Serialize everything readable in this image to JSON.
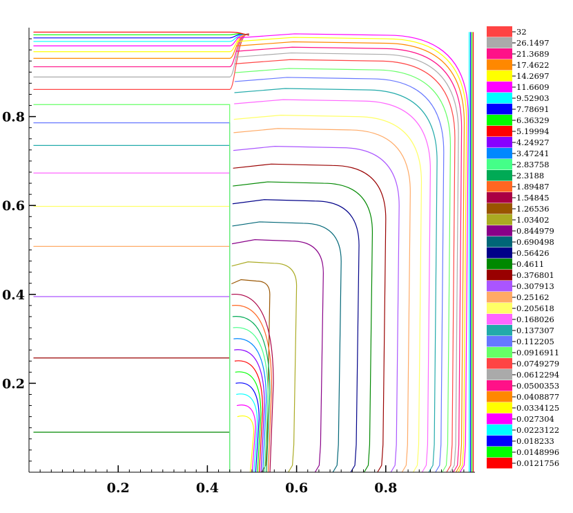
{
  "chart_data": {
    "type": "contour",
    "title": "",
    "xlabel": "",
    "ylabel": "",
    "xlim": [
      0,
      1
    ],
    "ylim": [
      0,
      1
    ],
    "x_ticks": [
      {
        "value": 0.2,
        "label": "0.2"
      },
      {
        "value": 0.4,
        "label": "0.4"
      },
      {
        "value": 0.6,
        "label": "0.6"
      },
      {
        "value": 0.8,
        "label": "0.8"
      }
    ],
    "y_ticks": [
      {
        "value": 0.2,
        "label": "0.2"
      },
      {
        "value": 0.4,
        "label": "0.4"
      },
      {
        "value": 0.6,
        "label": "0.6"
      },
      {
        "value": 0.8,
        "label": "0.8"
      }
    ],
    "discontinuity_x": 0.45,
    "legend_position": "right",
    "levels": [
      {
        "label": "32",
        "color": "#ff4444"
      },
      {
        "label": "26.1497",
        "color": "#aaaaaa"
      },
      {
        "label": "21.3689",
        "color": "#ff1188"
      },
      {
        "label": "17.4622",
        "color": "#ff8800"
      },
      {
        "label": "14.2697",
        "color": "#ffff00"
      },
      {
        "label": "11.6609",
        "color": "#ff00ff"
      },
      {
        "label": "9.52903",
        "color": "#00ffff"
      },
      {
        "label": "7.78691",
        "color": "#0000ff"
      },
      {
        "label": "6.36329",
        "color": "#00ff00"
      },
      {
        "label": "5.19994",
        "color": "#ff0000"
      },
      {
        "label": "4.24927",
        "color": "#8800ff"
      },
      {
        "label": "3.47241",
        "color": "#0088ff"
      },
      {
        "label": "2.83758",
        "color": "#44ff88"
      },
      {
        "label": "2.3188",
        "color": "#00aa55"
      },
      {
        "label": "1.89487",
        "color": "#ff6622"
      },
      {
        "label": "1.54845",
        "color": "#aa0044"
      },
      {
        "label": "1.26536",
        "color": "#995500"
      },
      {
        "label": "1.03402",
        "color": "#aaaa22"
      },
      {
        "label": "0.844979",
        "color": "#880088"
      },
      {
        "label": "0.690498",
        "color": "#006677"
      },
      {
        "label": "0.56426",
        "color": "#000088"
      },
      {
        "label": "0.4611",
        "color": "#008800"
      },
      {
        "label": "0.376801",
        "color": "#990000"
      },
      {
        "label": "0.307913",
        "color": "#aa55ff"
      },
      {
        "label": "0.25162",
        "color": "#ffaa66"
      },
      {
        "label": "0.205618",
        "color": "#ffff66"
      },
      {
        "label": "0.168026",
        "color": "#ff66ff"
      },
      {
        "label": "0.137307",
        "color": "#22aaaa"
      },
      {
        "label": "0.112205",
        "color": "#6677ff"
      },
      {
        "label": "0.0916911",
        "color": "#66ff66"
      },
      {
        "label": "0.0749279",
        "color": "#ff4444"
      },
      {
        "label": "0.0612294",
        "color": "#aaaaaa"
      },
      {
        "label": "0.0500353",
        "color": "#ff1188"
      },
      {
        "label": "0.0408877",
        "color": "#ff8800"
      },
      {
        "label": "0.0334125",
        "color": "#ffff00"
      },
      {
        "label": "0.027304",
        "color": "#ff00ff"
      },
      {
        "label": "0.0223122",
        "color": "#00ffff"
      },
      {
        "label": "0.018233",
        "color": "#0000ff"
      },
      {
        "label": "0.0148996",
        "color": "#00ff00"
      },
      {
        "label": "0.0121756",
        "color": "#ff0000"
      }
    ],
    "left_region_levels": [
      {
        "level": "0.4611",
        "y": 0.09
      },
      {
        "level": "0.376801",
        "y": 0.257
      },
      {
        "level": "0.307913",
        "y": 0.395
      },
      {
        "level": "0.25162",
        "y": 0.508
      },
      {
        "level": "0.205618",
        "y": 0.598
      },
      {
        "level": "0.168026",
        "y": 0.673
      },
      {
        "level": "0.137307",
        "y": 0.735
      },
      {
        "level": "0.112205",
        "y": 0.786
      },
      {
        "level": "0.0916911",
        "y": 0.827
      },
      {
        "level": "0.0749279",
        "y": 0.861
      },
      {
        "level": "0.0612294",
        "y": 0.889
      },
      {
        "level": "0.0500353",
        "y": 0.912
      },
      {
        "level": "0.0408877",
        "y": 0.931
      },
      {
        "level": "0.0334125",
        "y": 0.946
      },
      {
        "level": "0.027304",
        "y": 0.959
      },
      {
        "level": "0.0223122",
        "y": 0.969
      },
      {
        "level": "0.018233",
        "y": 0.977
      },
      {
        "level": "0.0148996",
        "y": 0.984
      },
      {
        "level": "0.0121756",
        "y": 0.99
      }
    ],
    "right_region_contours": [
      {
        "level": "1.26536",
        "x_corner": 0.54,
        "y_top": 0.43
      },
      {
        "level": "1.03402",
        "x_corner": 0.6,
        "y_top": 0.47
      },
      {
        "level": "0.844979",
        "x_corner": 0.66,
        "y_top": 0.52
      },
      {
        "level": "0.690498",
        "x_corner": 0.7,
        "y_top": 0.56
      },
      {
        "level": "0.56426",
        "x_corner": 0.74,
        "y_top": 0.61
      },
      {
        "level": "0.4611",
        "x_corner": 0.77,
        "y_top": 0.65
      },
      {
        "level": "0.376801",
        "x_corner": 0.8,
        "y_top": 0.69
      },
      {
        "level": "0.307913",
        "x_corner": 0.83,
        "y_top": 0.73
      },
      {
        "level": "0.25162",
        "x_corner": 0.855,
        "y_top": 0.77
      },
      {
        "level": "0.205618",
        "x_corner": 0.88,
        "y_top": 0.8
      },
      {
        "level": "0.168026",
        "x_corner": 0.9,
        "y_top": 0.835
      },
      {
        "level": "0.137307",
        "x_corner": 0.915,
        "y_top": 0.86
      },
      {
        "level": "0.112205",
        "x_corner": 0.93,
        "y_top": 0.885
      },
      {
        "level": "0.0916911",
        "x_corner": 0.945,
        "y_top": 0.905
      },
      {
        "level": "0.0749279",
        "x_corner": 0.955,
        "y_top": 0.925
      },
      {
        "level": "0.0612294",
        "x_corner": 0.963,
        "y_top": 0.94
      },
      {
        "level": "0.0500353",
        "x_corner": 0.97,
        "y_top": 0.953
      },
      {
        "level": "0.0408877",
        "x_corner": 0.976,
        "y_top": 0.965
      },
      {
        "level": "0.0334125",
        "x_corner": 0.981,
        "y_top": 0.975
      },
      {
        "level": "0.027304",
        "x_corner": 0.985,
        "y_top": 0.983
      }
    ]
  }
}
